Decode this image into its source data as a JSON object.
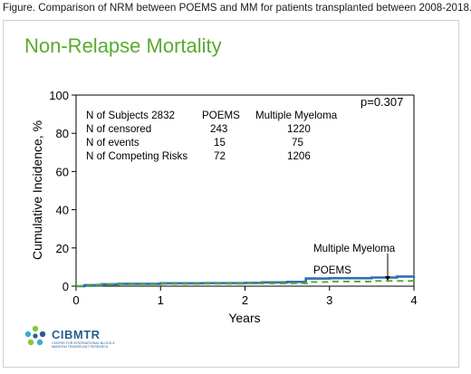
{
  "caption": "Figure. Comparison of NRM between POEMS and MM for patients transplanted between 2008-2018.",
  "slide_title": "Non-Relapse Mortality",
  "logo": {
    "name": "CIBMTR",
    "tagline": "CENTER FOR INTERNATIONAL BLOOD & MARROW TRANSPLANT RESEARCH"
  },
  "stats_table": {
    "header": [
      "N of Subjects 2832",
      "POEMS",
      "Multiple Myeloma"
    ],
    "rows": [
      [
        "N of censored",
        "243",
        "1220"
      ],
      [
        "N of events",
        "15",
        "75"
      ],
      [
        "N of Competing Risks",
        "72",
        "1206"
      ]
    ]
  },
  "chart_data": {
    "type": "line",
    "xlabel": "Years",
    "ylabel": "Cumulative Incidence, %",
    "xlim": [
      0,
      4
    ],
    "ylim": [
      0,
      100
    ],
    "xticks": [
      "0",
      "1",
      "2",
      "3",
      "4"
    ],
    "yticks": [
      "0",
      "20",
      "40",
      "60",
      "80",
      "100"
    ],
    "annotation": "p=0.307",
    "grid": false,
    "series": [
      {
        "name": "Multiple Myeloma",
        "color": "#2f6fb3",
        "style": "solid",
        "x": [
          0,
          0.1,
          0.3,
          0.5,
          1.0,
          1.5,
          2.0,
          2.2,
          2.5,
          2.7,
          2.72,
          3.0,
          3.5,
          3.8,
          4.0
        ],
        "y": [
          0,
          0.5,
          1.0,
          1.2,
          1.5,
          1.6,
          1.7,
          2.0,
          2.2,
          2.3,
          4.0,
          4.2,
          4.5,
          5.0,
          5.2
        ]
      },
      {
        "name": "POEMS",
        "color": "#5aaa2e",
        "style": "dashed",
        "x": [
          0,
          0.2,
          0.5,
          1.0,
          1.5,
          2.0,
          2.5,
          2.7,
          2.75,
          3.0,
          3.5,
          4.0
        ],
        "y": [
          0,
          0.8,
          1.0,
          1.2,
          1.3,
          1.4,
          1.5,
          1.5,
          2.2,
          2.4,
          2.7,
          3.2
        ]
      }
    ],
    "series_labels": [
      "Multiple Myeloma",
      "POEMS"
    ]
  }
}
